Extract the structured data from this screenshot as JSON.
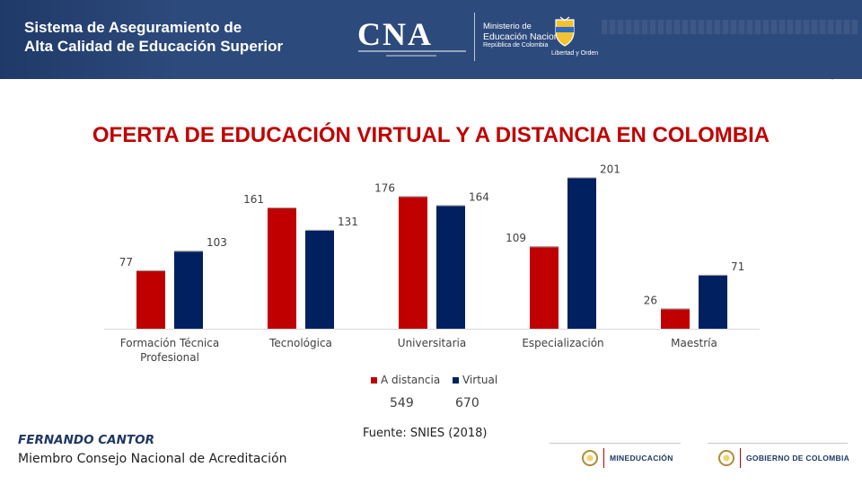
{
  "header": {
    "system_line1": "Sistema de Aseguramiento de",
    "system_line2": "Alta Calidad de Educación Superior",
    "cna_logo": "CNA",
    "ministry_line1": "Ministerio de",
    "ministry_line2": "Educación Nacional",
    "ministry_line3": "República de Colombia",
    "shield_caption": "Libertad y Orden"
  },
  "colors": {
    "header_bg": "#2d4a7c",
    "title": "#c00000",
    "a_distancia": "#c00000",
    "virtual": "#002060"
  },
  "chart_data": {
    "type": "bar",
    "title": "OFERTA DE EDUCACIÓN VIRTUAL Y A DISTANCIA EN COLOMBIA",
    "categories": [
      "Formación Técnica Profesional",
      "Tecnológica",
      "Universitaria",
      "Especialización",
      "Maestría"
    ],
    "series": [
      {
        "name": "A distancia",
        "values": [
          77,
          161,
          176,
          109,
          26
        ]
      },
      {
        "name": "Virtual",
        "values": [
          103,
          131,
          164,
          201,
          71
        ]
      }
    ],
    "ylim": [
      0,
      210
    ],
    "legend_position": "bottom",
    "totals": [
      "549",
      "670"
    ],
    "grid": false
  },
  "source": "Fuente: SNIES (2018)",
  "author": {
    "name": "FERNANDO CANTOR",
    "role": "Miembro Consejo Nacional de Acreditación"
  },
  "footer": {
    "logo1_text": "MINEDUCACIÓN",
    "logo2_text": "GOBIERNO DE COLOMBIA"
  }
}
